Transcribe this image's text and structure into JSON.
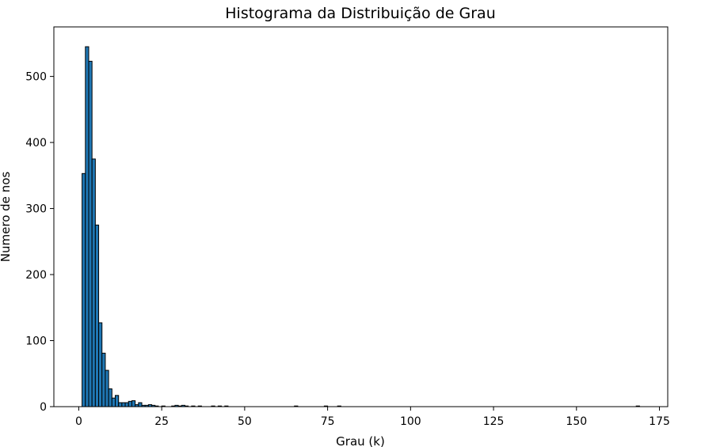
{
  "chart_data": {
    "type": "bar",
    "title": "Histograma da Distribuição de Grau",
    "xlabel": "Grau (k)",
    "ylabel": "Numero de nos",
    "xlim": [
      -7.5,
      177.5
    ],
    "ylim": [
      0,
      575
    ],
    "xticks": [
      0,
      25,
      50,
      75,
      100,
      125,
      150,
      175
    ],
    "yticks": [
      0,
      100,
      200,
      300,
      400,
      500
    ],
    "grid": false,
    "bar_color": "#1f77b4",
    "edge_color": "#000000",
    "bin_width": 1,
    "bins": [
      {
        "x": 1,
        "value": 353
      },
      {
        "x": 2,
        "value": 545
      },
      {
        "x": 3,
        "value": 523
      },
      {
        "x": 4,
        "value": 375
      },
      {
        "x": 5,
        "value": 275
      },
      {
        "x": 6,
        "value": 127
      },
      {
        "x": 7,
        "value": 81
      },
      {
        "x": 8,
        "value": 55
      },
      {
        "x": 9,
        "value": 27
      },
      {
        "x": 10,
        "value": 13
      },
      {
        "x": 11,
        "value": 17
      },
      {
        "x": 12,
        "value": 6
      },
      {
        "x": 13,
        "value": 6
      },
      {
        "x": 14,
        "value": 6
      },
      {
        "x": 15,
        "value": 8
      },
      {
        "x": 16,
        "value": 9
      },
      {
        "x": 17,
        "value": 3
      },
      {
        "x": 18,
        "value": 6
      },
      {
        "x": 19,
        "value": 2
      },
      {
        "x": 20,
        "value": 2
      },
      {
        "x": 21,
        "value": 3
      },
      {
        "x": 22,
        "value": 2
      },
      {
        "x": 23,
        "value": 1
      },
      {
        "x": 25,
        "value": 1
      },
      {
        "x": 28,
        "value": 1
      },
      {
        "x": 29,
        "value": 2
      },
      {
        "x": 30,
        "value": 1
      },
      {
        "x": 31,
        "value": 2
      },
      {
        "x": 32,
        "value": 1
      },
      {
        "x": 34,
        "value": 1
      },
      {
        "x": 36,
        "value": 1
      },
      {
        "x": 40,
        "value": 1
      },
      {
        "x": 42,
        "value": 1
      },
      {
        "x": 44,
        "value": 1
      },
      {
        "x": 65,
        "value": 1
      },
      {
        "x": 74,
        "value": 1
      },
      {
        "x": 78,
        "value": 1
      },
      {
        "x": 168,
        "value": 1
      }
    ]
  }
}
